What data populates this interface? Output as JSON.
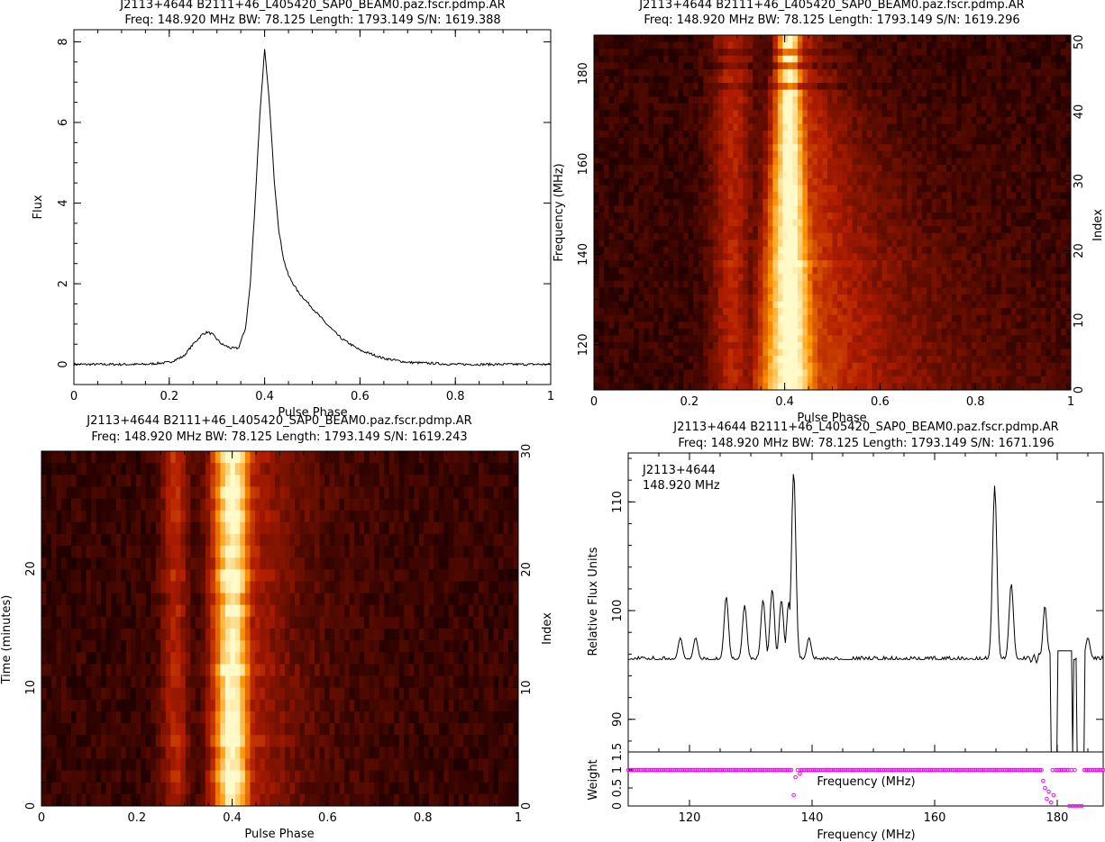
{
  "panels": {
    "profile": {
      "title": "J2113+4644 B2111+46_L405420_SAP0_BEAM0.paz.fscr.pdmp.AR",
      "subtitle": "Freq: 148.920 MHz BW: 78.125 Length: 1793.149 S/N: 1619.388",
      "xlabel": "Pulse Phase",
      "ylabel": "Flux",
      "xticks": [
        "0",
        "0.2",
        "0.4",
        "0.6",
        "0.8",
        "1"
      ],
      "yticks": [
        "0",
        "2",
        "4",
        "6",
        "8"
      ]
    },
    "freq": {
      "title": "J2113+4644 B2111+46_L405420_SAP0_BEAM0.paz.fscr.pdmp.AR",
      "subtitle": "Freq: 148.920 MHz BW: 78.125 Length: 1793.149 S/N: 1619.296",
      "xlabel": "Pulse Phase",
      "ylabel": "Frequency (MHz)",
      "ylabel_right": "Index",
      "xticks": [
        "0",
        "0.2",
        "0.4",
        "0.6",
        "0.8",
        "1"
      ],
      "yticks": [
        "120",
        "140",
        "160",
        "180"
      ],
      "yticks_right": [
        "0",
        "10",
        "20",
        "30",
        "40",
        "50"
      ]
    },
    "time": {
      "title": "J2113+4644 B2111+46_L405420_SAP0_BEAM0.paz.fscr.pdmp.AR",
      "subtitle": "Freq: 148.920 MHz BW: 78.125 Length: 1793.149 S/N: 1619.243",
      "xlabel": "Pulse Phase",
      "ylabel": "Time (minutes)",
      "ylabel_right": "Index",
      "xticks": [
        "0",
        "0.2",
        "0.4",
        "0.6",
        "0.8",
        "1"
      ],
      "yticks": [
        "0",
        "10",
        "20"
      ],
      "yticks_right": [
        "0",
        "10",
        "20",
        "30"
      ]
    },
    "bandpass": {
      "title": "J2113+4644 B2111+46_L405420_SAP0_BEAM0.paz.fscr.pdmp.AR",
      "subtitle": "Freq: 148.920 MHz BW: 78.125 Length: 1793.149 S/N: 1671.196",
      "annotation_line1": "J2113+4644",
      "annotation_line2": "148.920 MHz",
      "xlabel": "Frequency (MHz)",
      "ylabel": "Relative Flux Units",
      "inner_label": "Frequency (MHz)",
      "weight_label": "Weight",
      "xticks": [
        "120",
        "140",
        "160",
        "180"
      ],
      "yticks": [
        "90",
        "100",
        "110"
      ],
      "weight_ticks": [
        "0",
        "0.5",
        "1",
        "1.5"
      ]
    }
  },
  "colors": {
    "heat_low": "#000000",
    "heat_mid": "#b03000",
    "heat_high": "#ffffe0",
    "weights": "#ff00ff",
    "line": "#000000"
  },
  "chart_data": [
    {
      "type": "line",
      "series": [
        {
          "x": [
            0,
            0.05,
            0.1,
            0.15,
            0.2,
            0.23,
            0.25,
            0.27,
            0.28,
            0.29,
            0.31,
            0.33,
            0.345,
            0.36,
            0.37,
            0.38,
            0.39,
            0.4,
            0.41,
            0.42,
            0.43,
            0.44,
            0.45,
            0.47,
            0.5,
            0.53,
            0.56,
            0.6,
            0.65,
            0.7,
            0.8,
            0.9,
            1.0
          ],
          "y": [
            0,
            0,
            0,
            0,
            0.05,
            0.2,
            0.5,
            0.75,
            0.8,
            0.75,
            0.5,
            0.4,
            0.4,
            0.9,
            2.0,
            4.0,
            6.2,
            7.8,
            6.5,
            4.6,
            3.3,
            2.6,
            2.2,
            1.8,
            1.4,
            1.0,
            0.65,
            0.35,
            0.15,
            0.05,
            0,
            0,
            0
          ]
        }
      ],
      "xlabel": "Pulse Phase",
      "ylabel": "Flux",
      "xlim": [
        0,
        1
      ],
      "ylim": [
        -0.5,
        8.3
      ]
    },
    {
      "type": "heatmap",
      "xlabel": "Pulse Phase",
      "ylabel": "Frequency (MHz)",
      "xlim": [
        0,
        1
      ],
      "ylim": [
        110,
        188.5
      ],
      "index_range": [
        0,
        51
      ],
      "peak_phase": 0.41,
      "rfi_rows_mhz": [
        177,
        180,
        182,
        184,
        186,
        138
      ]
    },
    {
      "type": "heatmap",
      "xlabel": "Pulse Phase",
      "ylabel": "Time (minutes)",
      "xlim": [
        0,
        1
      ],
      "ylim": [
        0,
        29.9
      ],
      "index_range": [
        0,
        30
      ],
      "peak_phase": 0.4,
      "bright_subints": [
        2,
        5,
        11,
        19,
        24,
        26,
        29
      ]
    },
    {
      "type": "line",
      "xlabel": "Frequency (MHz)",
      "ylabel": "Relative Flux Units",
      "xlim": [
        110,
        187.5
      ],
      "ylim": [
        87,
        114.5
      ],
      "baseline": 95.5,
      "spikes": [
        {
          "x": 118.5,
          "y": 97.5
        },
        {
          "x": 121,
          "y": 97.5
        },
        {
          "x": 126,
          "y": 101.3
        },
        {
          "x": 129,
          "y": 100.5
        },
        {
          "x": 132,
          "y": 101.0
        },
        {
          "x": 133.5,
          "y": 102.0
        },
        {
          "x": 135,
          "y": 101.0
        },
        {
          "x": 136.2,
          "y": 100.8
        },
        {
          "x": 137.0,
          "y": 112.8
        },
        {
          "x": 139.5,
          "y": 97.5
        },
        {
          "x": 169.8,
          "y": 111.5
        },
        {
          "x": 172.5,
          "y": 102.5
        },
        {
          "x": 178,
          "y": 100.2
        },
        {
          "x": 185,
          "y": 97.5
        }
      ],
      "dropouts": [
        [
          179,
          182.6
        ],
        [
          183.2,
          184.4
        ]
      ],
      "weights_ylim": [
        0,
        1.5
      ],
      "weights_default": 1.0,
      "weights_outliers": [
        {
          "x": 137,
          "w": 0.3
        },
        {
          "x": 137.3,
          "w": 0.8
        },
        {
          "x": 138,
          "w": 0.9
        },
        {
          "x": 177.7,
          "w": 0.7
        },
        {
          "x": 178,
          "w": 0.5
        },
        {
          "x": 178.3,
          "w": 0.2
        },
        {
          "x": 178.6,
          "w": 0.4
        },
        {
          "x": 179,
          "w": 0.1
        },
        {
          "x": 179.4,
          "w": 0.3
        },
        {
          "x": 182,
          "w": 0.0
        },
        {
          "x": 182.5,
          "w": 0.0
        },
        {
          "x": 183,
          "w": 0.0
        },
        {
          "x": 183.5,
          "w": 0.0
        },
        {
          "x": 184,
          "w": 0.0
        }
      ]
    }
  ]
}
